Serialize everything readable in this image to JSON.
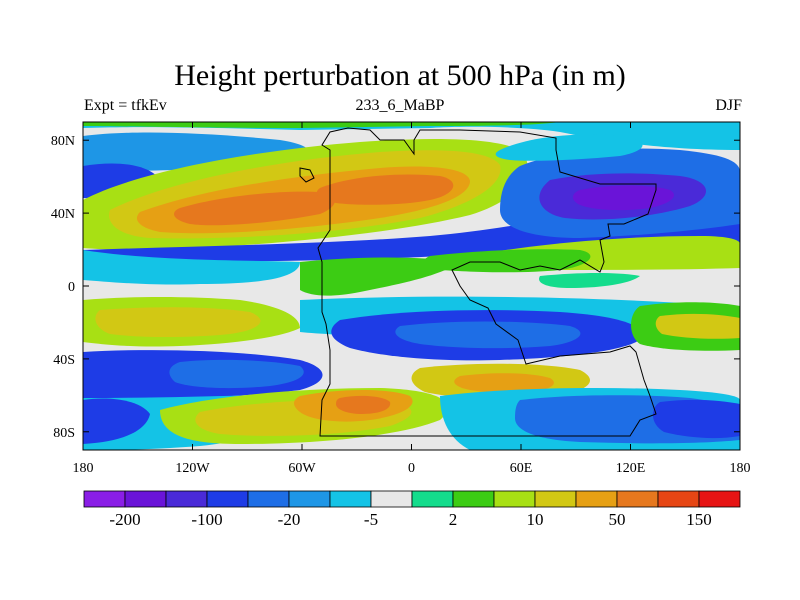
{
  "title": "Height perturbation at 500 hPa (in m)",
  "subtitle_left": "Expt = tfkEv",
  "subtitle_center": "233_6_MaBP",
  "subtitle_right": "DJF",
  "map": {
    "projection": "cylindrical-equidistant",
    "lon_range": [
      -180,
      180
    ],
    "lat_range": [
      -90,
      90
    ],
    "x_ticks": [
      "180",
      "120W",
      "60W",
      "0",
      "60E",
      "120E",
      "180"
    ],
    "y_ticks": [
      "80N",
      "40N",
      "0",
      "40S",
      "80S"
    ],
    "colors": {
      "purple": "#8a1ee6",
      "violet": "#6a14d8",
      "indigo": "#4a2ad8",
      "blue": "#1e3ce6",
      "mid-blue": "#1e6ee6",
      "sky-blue": "#1e96e6",
      "cyan": "#14c3e6",
      "gray": "#e8e8e8",
      "aquamarine": "#14dc8c",
      "green": "#3ccc14",
      "yellow-green": "#a8e014",
      "olive-yellow": "#d2c814",
      "orange-yellow": "#e6a014",
      "orange": "#e6781e",
      "red-orange": "#e64614",
      "red": "#e61414"
    },
    "outline": "black land outline"
  },
  "colorbar": {
    "colors": [
      "#8a1ee6",
      "#6a14d8",
      "#4a2ad8",
      "#1e3ce6",
      "#1e6ee6",
      "#1e96e6",
      "#14c3e6",
      "#e8e8e8",
      "#14dc8c",
      "#3ccc14",
      "#a8e014",
      "#d2c814",
      "#e6a014",
      "#e6781e",
      "#e64614",
      "#e61414"
    ],
    "labels": [
      "-200",
      "-100",
      "-20",
      "-5",
      "2",
      "10",
      "50",
      "150"
    ]
  }
}
